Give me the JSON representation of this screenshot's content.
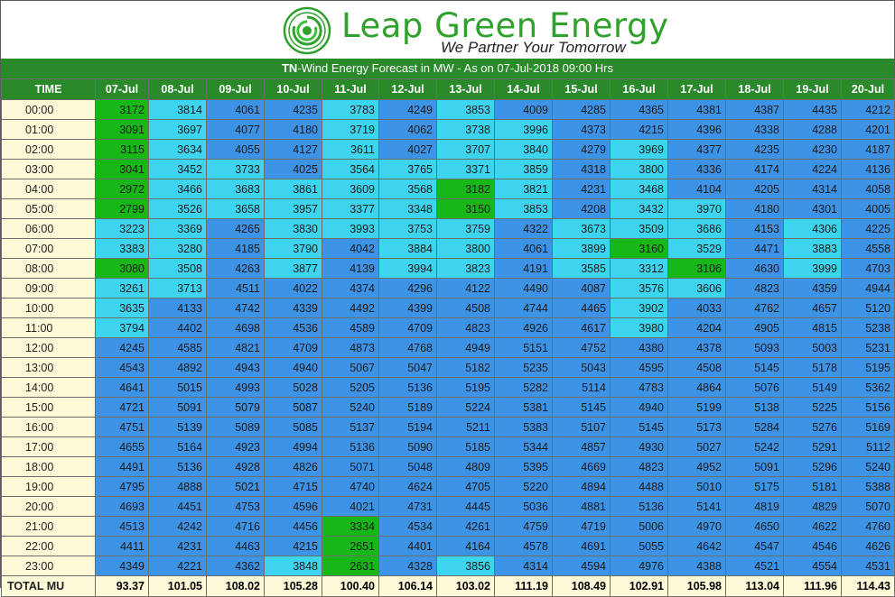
{
  "brand": {
    "name": "Leap Green Energy",
    "tagline": "We Partner Your Tomorrow"
  },
  "title": {
    "prefix": "TN",
    "rest": "-Wind Energy Forecast in MW - As on 07-Jul-2018 09:00 Hrs"
  },
  "colors": {
    "green": "#17b717",
    "light": "#3dd4ef",
    "blue": "#3d93e6",
    "header_green": "#2a8a2a",
    "cream": "#fef9d7"
  },
  "columns": [
    "TIME",
    "07-Jul",
    "08-Jul",
    "09-Jul",
    "10-Jul",
    "11-Jul",
    "12-Jul",
    "13-Jul",
    "14-Jul",
    "15-Jul",
    "16-Jul",
    "17-Jul",
    "18-Jul",
    "19-Jul",
    "20-Jul"
  ],
  "rows": [
    {
      "time": "00:00",
      "values": [
        3172,
        3814,
        4061,
        4235,
        3783,
        4249,
        3853,
        4009,
        4285,
        4365,
        4381,
        4387,
        4435,
        4212
      ],
      "shade": [
        "G",
        "L",
        "B",
        "B",
        "L",
        "B",
        "L",
        "B",
        "B",
        "B",
        "B",
        "B",
        "B",
        "B"
      ]
    },
    {
      "time": "01:00",
      "values": [
        3091,
        3697,
        4077,
        4180,
        3719,
        4062,
        3738,
        3996,
        4373,
        4215,
        4396,
        4338,
        4288,
        4201
      ],
      "shade": [
        "G",
        "L",
        "B",
        "B",
        "L",
        "B",
        "L",
        "L",
        "B",
        "B",
        "B",
        "B",
        "B",
        "B"
      ]
    },
    {
      "time": "02:00",
      "values": [
        3115,
        3634,
        4055,
        4127,
        3611,
        4027,
        3707,
        3840,
        4279,
        3969,
        4377,
        4235,
        4230,
        4187
      ],
      "shade": [
        "G",
        "L",
        "B",
        "B",
        "L",
        "B",
        "L",
        "L",
        "B",
        "L",
        "B",
        "B",
        "B",
        "B"
      ]
    },
    {
      "time": "03:00",
      "values": [
        3041,
        3452,
        3733,
        4025,
        3564,
        3765,
        3371,
        3859,
        4318,
        3800,
        4336,
        4174,
        4224,
        4136
      ],
      "shade": [
        "G",
        "L",
        "L",
        "B",
        "L",
        "L",
        "L",
        "L",
        "B",
        "L",
        "B",
        "B",
        "B",
        "B"
      ]
    },
    {
      "time": "04:00",
      "values": [
        2972,
        3466,
        3683,
        3861,
        3609,
        3568,
        3182,
        3821,
        4231,
        3468,
        4104,
        4205,
        4314,
        4058
      ],
      "shade": [
        "G",
        "L",
        "L",
        "L",
        "L",
        "L",
        "G",
        "L",
        "B",
        "L",
        "B",
        "B",
        "B",
        "B"
      ]
    },
    {
      "time": "05:00",
      "values": [
        2799,
        3526,
        3658,
        3957,
        3377,
        3348,
        3150,
        3853,
        4208,
        3432,
        3970,
        4180,
        4301,
        4005
      ],
      "shade": [
        "G",
        "L",
        "L",
        "L",
        "L",
        "L",
        "G",
        "L",
        "B",
        "L",
        "L",
        "B",
        "B",
        "B"
      ]
    },
    {
      "time": "06:00",
      "values": [
        3223,
        3369,
        4265,
        3830,
        3993,
        3753,
        3759,
        4322,
        3673,
        3509,
        3686,
        4153,
        4306,
        4225
      ],
      "shade": [
        "L",
        "L",
        "B",
        "L",
        "L",
        "L",
        "L",
        "B",
        "L",
        "L",
        "L",
        "B",
        "L",
        "B"
      ]
    },
    {
      "time": "07:00",
      "values": [
        3383,
        3280,
        4185,
        3790,
        4042,
        3884,
        3800,
        4061,
        3899,
        3160,
        3529,
        4471,
        3883,
        4558
      ],
      "shade": [
        "L",
        "L",
        "B",
        "L",
        "B",
        "L",
        "L",
        "B",
        "L",
        "G",
        "L",
        "B",
        "L",
        "B"
      ]
    },
    {
      "time": "08:00",
      "values": [
        3080,
        3508,
        4263,
        3877,
        4139,
        3994,
        3823,
        4191,
        3585,
        3312,
        3106,
        4630,
        3999,
        4703
      ],
      "shade": [
        "G",
        "L",
        "B",
        "L",
        "B",
        "L",
        "L",
        "B",
        "L",
        "L",
        "G",
        "B",
        "L",
        "B"
      ]
    },
    {
      "time": "09:00",
      "values": [
        3261,
        3713,
        4511,
        4022,
        4374,
        4296,
        4122,
        4490,
        4087,
        3576,
        3606,
        4823,
        4359,
        4944
      ],
      "shade": [
        "L",
        "L",
        "B",
        "B",
        "B",
        "B",
        "B",
        "B",
        "B",
        "L",
        "L",
        "B",
        "B",
        "B"
      ]
    },
    {
      "time": "10:00",
      "values": [
        3635,
        4133,
        4742,
        4339,
        4492,
        4399,
        4508,
        4744,
        4465,
        3902,
        4033,
        4762,
        4657,
        5120
      ],
      "shade": [
        "L",
        "B",
        "B",
        "B",
        "B",
        "B",
        "B",
        "B",
        "B",
        "L",
        "B",
        "B",
        "B",
        "B"
      ]
    },
    {
      "time": "11:00",
      "values": [
        3794,
        4402,
        4698,
        4536,
        4589,
        4709,
        4823,
        4926,
        4617,
        3980,
        4204,
        4905,
        4815,
        5238
      ],
      "shade": [
        "L",
        "B",
        "B",
        "B",
        "B",
        "B",
        "B",
        "B",
        "B",
        "L",
        "B",
        "B",
        "B",
        "B"
      ]
    },
    {
      "time": "12:00",
      "values": [
        4245,
        4585,
        4821,
        4709,
        4873,
        4768,
        4949,
        5151,
        4752,
        4380,
        4378,
        5093,
        5003,
        5231
      ],
      "shade": [
        "B",
        "B",
        "B",
        "B",
        "B",
        "B",
        "B",
        "B",
        "B",
        "B",
        "B",
        "B",
        "B",
        "B"
      ]
    },
    {
      "time": "13:00",
      "values": [
        4543,
        4892,
        4943,
        4940,
        5067,
        5047,
        5182,
        5235,
        5043,
        4595,
        4508,
        5145,
        5178,
        5195
      ],
      "shade": [
        "B",
        "B",
        "B",
        "B",
        "B",
        "B",
        "B",
        "B",
        "B",
        "B",
        "B",
        "B",
        "B",
        "B"
      ]
    },
    {
      "time": "14:00",
      "values": [
        4641,
        5015,
        4993,
        5028,
        5205,
        5136,
        5195,
        5282,
        5114,
        4783,
        4864,
        5076,
        5149,
        5362
      ],
      "shade": [
        "B",
        "B",
        "B",
        "B",
        "B",
        "B",
        "B",
        "B",
        "B",
        "B",
        "B",
        "B",
        "B",
        "B"
      ]
    },
    {
      "time": "15:00",
      "values": [
        4721,
        5091,
        5079,
        5087,
        5240,
        5189,
        5224,
        5381,
        5145,
        4940,
        5199,
        5138,
        5225,
        5156
      ],
      "shade": [
        "B",
        "B",
        "B",
        "B",
        "B",
        "B",
        "B",
        "B",
        "B",
        "B",
        "B",
        "B",
        "B",
        "B"
      ]
    },
    {
      "time": "16:00",
      "values": [
        4751,
        5139,
        5089,
        5085,
        5137,
        5194,
        5211,
        5383,
        5107,
        5145,
        5173,
        5284,
        5276,
        5169
      ],
      "shade": [
        "B",
        "B",
        "B",
        "B",
        "B",
        "B",
        "B",
        "B",
        "B",
        "B",
        "B",
        "B",
        "B",
        "B"
      ]
    },
    {
      "time": "17:00",
      "values": [
        4655,
        5164,
        4923,
        4994,
        5136,
        5090,
        5185,
        5344,
        4857,
        4930,
        5027,
        5242,
        5291,
        5112
      ],
      "shade": [
        "B",
        "B",
        "B",
        "B",
        "B",
        "B",
        "B",
        "B",
        "B",
        "B",
        "B",
        "B",
        "B",
        "B"
      ]
    },
    {
      "time": "18:00",
      "values": [
        4491,
        5136,
        4928,
        4826,
        5071,
        5048,
        4809,
        5395,
        4669,
        4823,
        4952,
        5091,
        5296,
        5240
      ],
      "shade": [
        "B",
        "B",
        "B",
        "B",
        "B",
        "B",
        "B",
        "B",
        "B",
        "B",
        "B",
        "B",
        "B",
        "B"
      ]
    },
    {
      "time": "19:00",
      "values": [
        4795,
        4888,
        5021,
        4715,
        4740,
        4624,
        4705,
        5220,
        4894,
        4488,
        5010,
        5175,
        5181,
        5388
      ],
      "shade": [
        "B",
        "B",
        "B",
        "B",
        "B",
        "B",
        "B",
        "B",
        "B",
        "B",
        "B",
        "B",
        "B",
        "B"
      ]
    },
    {
      "time": "20:00",
      "values": [
        4693,
        4451,
        4753,
        4596,
        4021,
        4731,
        4445,
        5036,
        4881,
        5136,
        5141,
        4819,
        4829,
        5070
      ],
      "shade": [
        "B",
        "B",
        "B",
        "B",
        "B",
        "B",
        "B",
        "B",
        "B",
        "B",
        "B",
        "B",
        "B",
        "B"
      ]
    },
    {
      "time": "21:00",
      "values": [
        4513,
        4242,
        4716,
        4456,
        3334,
        4534,
        4261,
        4759,
        4719,
        5006,
        4970,
        4650,
        4622,
        4760
      ],
      "shade": [
        "B",
        "B",
        "B",
        "B",
        "G",
        "B",
        "B",
        "B",
        "B",
        "B",
        "B",
        "B",
        "B",
        "B"
      ]
    },
    {
      "time": "22:00",
      "values": [
        4411,
        4231,
        4463,
        4215,
        2651,
        4401,
        4164,
        4578,
        4691,
        5055,
        4642,
        4547,
        4546,
        4626
      ],
      "shade": [
        "B",
        "B",
        "B",
        "B",
        "G",
        "B",
        "B",
        "B",
        "B",
        "B",
        "B",
        "B",
        "B",
        "B"
      ]
    },
    {
      "time": "23:00",
      "values": [
        4349,
        4221,
        4362,
        3848,
        2631,
        4328,
        3856,
        4314,
        4594,
        4976,
        4388,
        4521,
        4554,
        4531
      ],
      "shade": [
        "B",
        "B",
        "B",
        "L",
        "G",
        "B",
        "L",
        "B",
        "B",
        "B",
        "B",
        "B",
        "B",
        "B"
      ]
    }
  ],
  "total": {
    "label": "TOTAL MU",
    "values": [
      "93.37",
      "101.05",
      "108.02",
      "105.28",
      "100.40",
      "106.14",
      "103.02",
      "111.19",
      "108.49",
      "102.91",
      "105.98",
      "113.04",
      "111.96",
      "114.43"
    ]
  }
}
